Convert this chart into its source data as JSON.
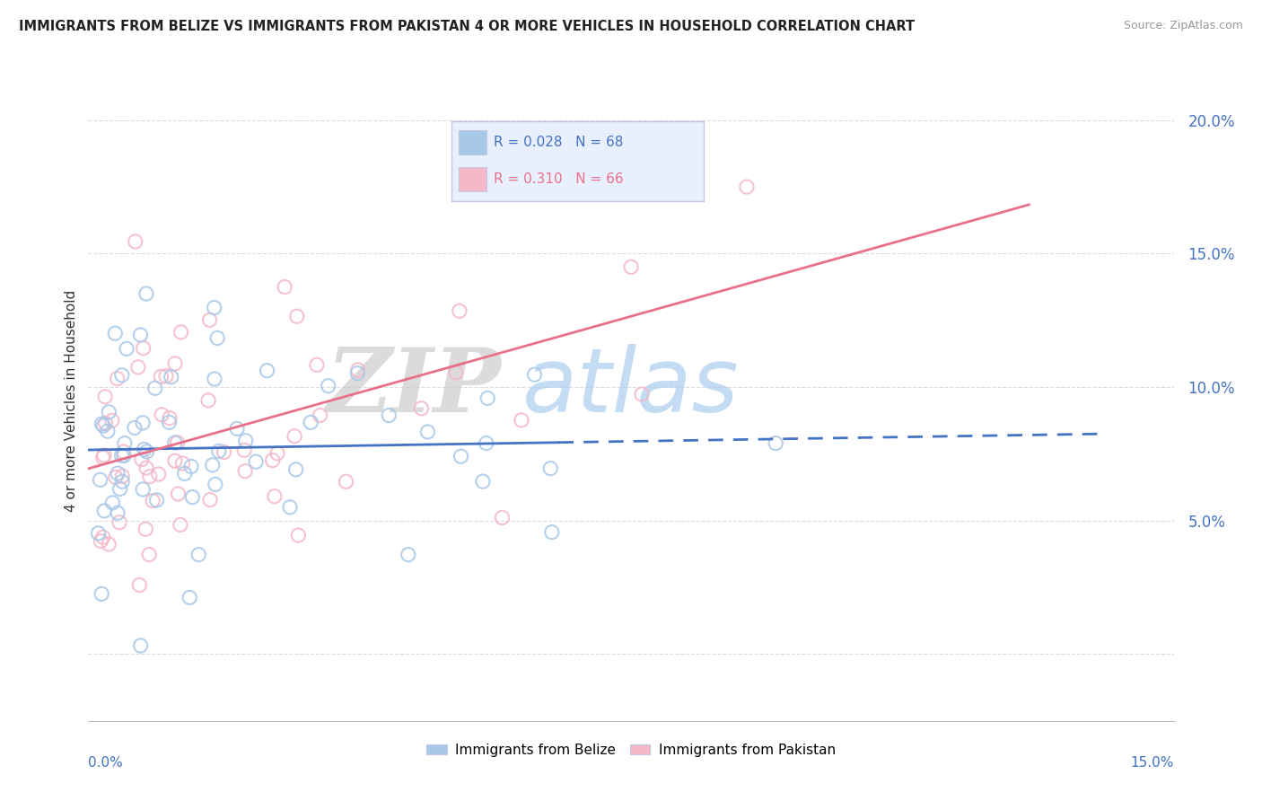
{
  "title": "IMMIGRANTS FROM BELIZE VS IMMIGRANTS FROM PAKISTAN 4 OR MORE VEHICLES IN HOUSEHOLD CORRELATION CHART",
  "source": "Source: ZipAtlas.com",
  "ylabel": "4 or more Vehicles in Household",
  "xmin": 0.0,
  "xmax": 0.15,
  "ymin": -0.025,
  "ymax": 0.215,
  "yticks": [
    0.0,
    0.05,
    0.1,
    0.15,
    0.2
  ],
  "ytick_labels": [
    "",
    "5.0%",
    "10.0%",
    "15.0%",
    "20.0%"
  ],
  "belize_color": "#a8c8e8",
  "pakistan_color": "#f4b8c8",
  "belize_R": 0.028,
  "belize_N": 68,
  "pakistan_R": 0.31,
  "pakistan_N": 66,
  "watermark_zip": "ZIP",
  "watermark_atlas": "atlas",
  "watermark_zip_color": "#cccccc",
  "watermark_atlas_color": "#aaccee",
  "background_color": "#ffffff",
  "grid_color": "#dddddd",
  "trend_color_belize": "#4472c4",
  "trend_color_pakistan": "#e8708a",
  "label_color_blue": "#4472c4",
  "label_color_pink": "#e8708a",
  "legend_bg": "#e8f0fe",
  "legend_border": "#c0c8e0"
}
